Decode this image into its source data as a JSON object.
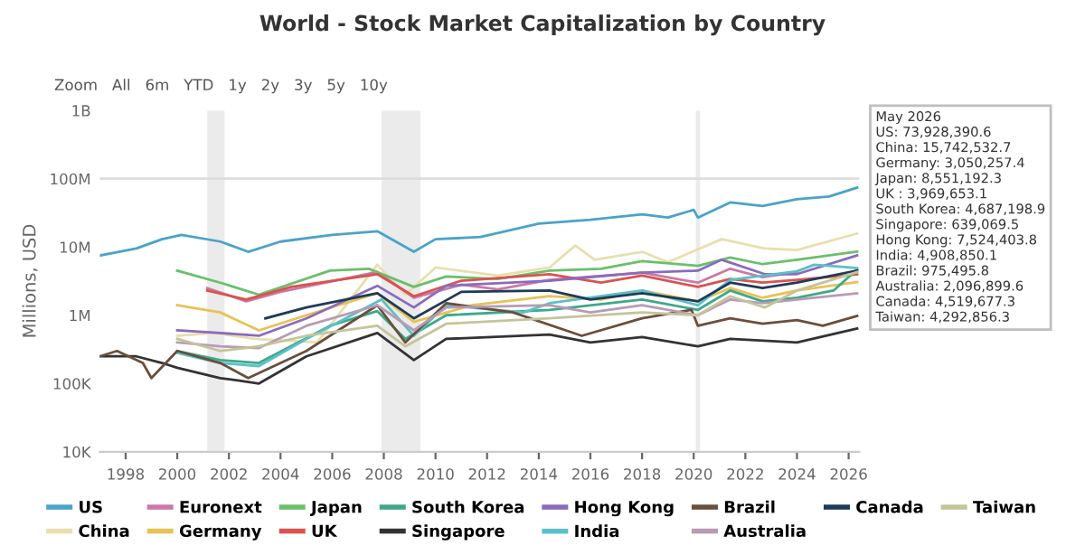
{
  "chart_data": {
    "type": "line",
    "title": "World - Stock Market Capitalization by Country",
    "ylabel": "Millions, USD",
    "log": "y",
    "ylim": [
      10000,
      1000000000
    ],
    "yticks": [
      {
        "value": 10000,
        "label": "10K"
      },
      {
        "value": 100000,
        "label": "100K"
      },
      {
        "value": 1000000,
        "label": "1M"
      },
      {
        "value": 10000000,
        "label": "10M"
      },
      {
        "value": 100000000,
        "label": "100M"
      },
      {
        "value": 1000000000,
        "label": "1B"
      }
    ],
    "xlim": [
      "1997-01",
      "2026-06"
    ],
    "xticks": [
      "1998",
      "2000",
      "2002",
      "2004",
      "2006",
      "2008",
      "2010",
      "2012",
      "2014",
      "2016",
      "2018",
      "2020",
      "2022",
      "2024",
      "2026"
    ],
    "grid": false,
    "legend": "bottom",
    "bands": [
      {
        "axis": "x",
        "from": "2001-03",
        "to": "2001-11",
        "label": null,
        "color": "#ebebeb"
      },
      {
        "axis": "x",
        "from": "2007-12",
        "to": "2009-06",
        "label": null,
        "color": "#ebebeb"
      },
      {
        "axis": "x",
        "from": "2020-02",
        "to": "2020-04",
        "label": null,
        "color": "#ebebeb"
      }
    ],
    "ref_lines": [
      {
        "axis": "y",
        "value": 100000000,
        "label": null,
        "color": "#dddddd"
      }
    ],
    "annotations": [
      "Zoom   All   6m   YTD   1y   2y   3y   5y   10y",
      "May 2026\nUS: 73,928,390.6\nChina: 15,742,532.7\nGermany: 3,050,257.4\nJapan: 8,551,192.3\nUK : 3,969,653.1\nSouth Korea: 4,687,198.9\nSingapore: 639,069.5\nHong Kong: 7,524,403.8\nIndia: 4,908,850.1\nBrazil: 975,495.8\nAustralia: 2,096,899.6\nCanada: 4,519,677.3\nTaiwan: 4,292,856.3"
    ],
    "series": [
      {
        "name": "US",
        "color": "#4aa3c8",
        "x": [
          "1997-01",
          "1998-06",
          "1999-06",
          "2000-03",
          "2001-09",
          "2002-10",
          "2004-01",
          "2006-01",
          "2007-10",
          "2009-03",
          "2010-01",
          "2011-10",
          "2014-01",
          "2016-01",
          "2018-01",
          "2019-01",
          "2020-01",
          "2020-03",
          "2021-06",
          "2022-09",
          "2024-01",
          "2025-04",
          "2026-05"
        ],
        "values": [
          7500000,
          9500000,
          13000000,
          15000000,
          12000000,
          8500000,
          12000000,
          15000000,
          17000000,
          8500000,
          13000000,
          14000000,
          22000000,
          25000000,
          30000000,
          27000000,
          35000000,
          27000000,
          45000000,
          40000000,
          50000000,
          55000000,
          73928390.6
        ]
      },
      {
        "name": "China",
        "color": "#e8dfae",
        "x": [
          "2000-01",
          "2001-06",
          "2003-01",
          "2005-06",
          "2007-10",
          "2008-11",
          "2010-01",
          "2012-06",
          "2014-06",
          "2015-06",
          "2016-03",
          "2018-01",
          "2019-01",
          "2021-02",
          "2022-10",
          "2024-01",
          "2026-05"
        ],
        "values": [
          500000,
          550000,
          450000,
          400000,
          5500000,
          2000000,
          5000000,
          3800000,
          5000000,
          10500000,
          6500000,
          8500000,
          6000000,
          13000000,
          9500000,
          9000000,
          15742532.7
        ]
      },
      {
        "name": "Euronext",
        "color": "#c97aa6",
        "x": [
          "2001-03",
          "2002-09",
          "2004-01",
          "2007-10",
          "2009-03",
          "2011-01",
          "2012-06",
          "2014-06",
          "2018-01",
          "2020-03",
          "2021-06",
          "2022-09",
          "2024-01"
        ],
        "values": [
          2500000,
          1600000,
          2200000,
          4300000,
          1800000,
          2800000,
          2400000,
          3300000,
          4200000,
          3000000,
          4800000,
          3600000,
          4300000
        ]
      },
      {
        "name": "Germany",
        "color": "#e8c255",
        "x": [
          "2000-01",
          "2001-09",
          "2003-03",
          "2005-01",
          "2007-10",
          "2009-03",
          "2011-06",
          "2014-06",
          "2016-06",
          "2018-01",
          "2020-03",
          "2021-06",
          "2022-09",
          "2024-01",
          "2026-05"
        ],
        "values": [
          1400000,
          1100000,
          600000,
          1000000,
          2100000,
          800000,
          1400000,
          1900000,
          1700000,
          2300000,
          1600000,
          2500000,
          1800000,
          2300000,
          3050257.4
        ]
      },
      {
        "name": "Japan",
        "color": "#6bbf6b",
        "x": [
          "2000-01",
          "2001-09",
          "2003-03",
          "2005-12",
          "2007-06",
          "2009-03",
          "2010-06",
          "2012-06",
          "2014-06",
          "2016-06",
          "2018-01",
          "2020-03",
          "2021-06",
          "2022-09",
          "2024-01",
          "2026-05"
        ],
        "values": [
          4500000,
          3000000,
          2000000,
          4500000,
          4800000,
          2600000,
          3700000,
          3400000,
          4500000,
          4800000,
          6200000,
          5300000,
          7000000,
          5600000,
          6500000,
          8551192.3
        ]
      },
      {
        "name": "UK",
        "color": "#d9534f",
        "x": [
          "2001-03",
          "2002-09",
          "2004-06",
          "2007-10",
          "2009-03",
          "2011-01",
          "2014-06",
          "2016-06",
          "2018-01",
          "2020-03",
          "2021-06",
          "2022-09",
          "2024-01",
          "2026-05"
        ],
        "values": [
          2300000,
          1700000,
          2600000,
          4000000,
          1900000,
          3200000,
          4000000,
          3000000,
          3800000,
          2600000,
          3400000,
          3000000,
          3300000,
          3969653.1
        ]
      },
      {
        "name": "South Korea",
        "color": "#3fa88a",
        "x": [
          "2000-01",
          "2001-09",
          "2003-03",
          "2005-12",
          "2007-10",
          "2008-11",
          "2010-06",
          "2014-06",
          "2018-01",
          "2020-03",
          "2021-06",
          "2022-09",
          "2024-01",
          "2025-06",
          "2026-05"
        ],
        "values": [
          300000,
          220000,
          200000,
          700000,
          1150000,
          450000,
          1000000,
          1200000,
          1700000,
          1200000,
          2300000,
          1600000,
          1800000,
          2300000,
          4687198.9
        ]
      },
      {
        "name": "Singapore",
        "color": "#333333",
        "x": [
          "1997-01",
          "1998-06",
          "1999-06",
          "2000-01",
          "2001-09",
          "2002-06",
          "2003-03",
          "2005-01",
          "2007-10",
          "2009-03",
          "2010-06",
          "2014-06",
          "2016-01",
          "2018-01",
          "2020-03",
          "2021-06",
          "2024-01",
          "2026-05"
        ],
        "values": [
          250000,
          250000,
          200000,
          170000,
          120000,
          110000,
          100000,
          250000,
          550000,
          220000,
          450000,
          520000,
          400000,
          480000,
          350000,
          450000,
          400000,
          639069.5
        ]
      },
      {
        "name": "Hong Kong",
        "color": "#8a6bbf",
        "x": [
          "2000-01",
          "2001-09",
          "2003-03",
          "2005-01",
          "2007-10",
          "2009-03",
          "2010-06",
          "2014-06",
          "2018-01",
          "2020-03",
          "2021-02",
          "2022-10",
          "2024-01",
          "2026-05"
        ],
        "values": [
          600000,
          550000,
          500000,
          900000,
          2700000,
          1300000,
          2700000,
          3200000,
          4200000,
          4500000,
          6500000,
          4000000,
          4000000,
          7524403.8
        ]
      },
      {
        "name": "India",
        "color": "#5bc0c8",
        "x": [
          "2000-01",
          "2001-09",
          "2003-03",
          "2005-01",
          "2007-12",
          "2009-03",
          "2010-06",
          "2013-06",
          "2014-06",
          "2018-01",
          "2020-03",
          "2021-06",
          "2024-01",
          "2024-09",
          "2026-05"
        ],
        "values": [
          280000,
          200000,
          180000,
          450000,
          1700000,
          500000,
          1400000,
          1100000,
          1500000,
          2300000,
          1400000,
          3300000,
          4400000,
          5500000,
          4908850.1
        ]
      },
      {
        "name": "Brazil",
        "color": "#6b4e3d",
        "x": [
          "1997-01",
          "1997-09",
          "1998-09",
          "1999-01",
          "2000-01",
          "2001-09",
          "2002-10",
          "2005-01",
          "2007-10",
          "2008-11",
          "2010-06",
          "2013-01",
          "2015-09",
          "2018-01",
          "2019-12",
          "2020-03",
          "2021-06",
          "2022-09",
          "2024-01",
          "2025-01",
          "2026-05"
        ],
        "values": [
          250000,
          300000,
          200000,
          120000,
          300000,
          200000,
          120000,
          300000,
          1400000,
          400000,
          1500000,
          1100000,
          500000,
          900000,
          1200000,
          700000,
          900000,
          750000,
          850000,
          700000,
          975495.8
        ]
      },
      {
        "name": "Australia",
        "color": "#b89bb5",
        "x": [
          "2000-01",
          "2001-09",
          "2003-03",
          "2005-01",
          "2007-10",
          "2009-03",
          "2010-06",
          "2014-06",
          "2016-01",
          "2018-01",
          "2020-03",
          "2021-06",
          "2022-09",
          "2024-01",
          "2026-05"
        ],
        "values": [
          400000,
          350000,
          330000,
          700000,
          1400000,
          600000,
          1300000,
          1400000,
          1100000,
          1400000,
          1000000,
          1700000,
          1500000,
          1700000,
          2096899.6
        ]
      },
      {
        "name": "Canada",
        "color": "#1f3b57",
        "x": [
          "2003-06",
          "2005-01",
          "2007-10",
          "2009-03",
          "2011-01",
          "2014-06",
          "2016-01",
          "2018-01",
          "2020-03",
          "2021-06",
          "2022-09",
          "2024-01",
          "2026-05"
        ],
        "values": [
          900000,
          1300000,
          2100000,
          900000,
          2200000,
          2300000,
          1700000,
          2100000,
          1600000,
          3000000,
          2500000,
          3000000,
          4519677.3
        ]
      },
      {
        "name": "Taiwan",
        "color": "#c4c49a",
        "x": [
          "2000-01",
          "2001-09",
          "2003-03",
          "2005-01",
          "2007-10",
          "2008-11",
          "2010-06",
          "2014-06",
          "2018-01",
          "2020-03",
          "2021-06",
          "2022-10",
          "2024-01",
          "2026-05"
        ],
        "values": [
          450000,
          300000,
          350000,
          500000,
          700000,
          350000,
          750000,
          900000,
          1100000,
          1000000,
          1900000,
          1300000,
          2300000,
          4292856.3
        ]
      }
    ]
  }
}
